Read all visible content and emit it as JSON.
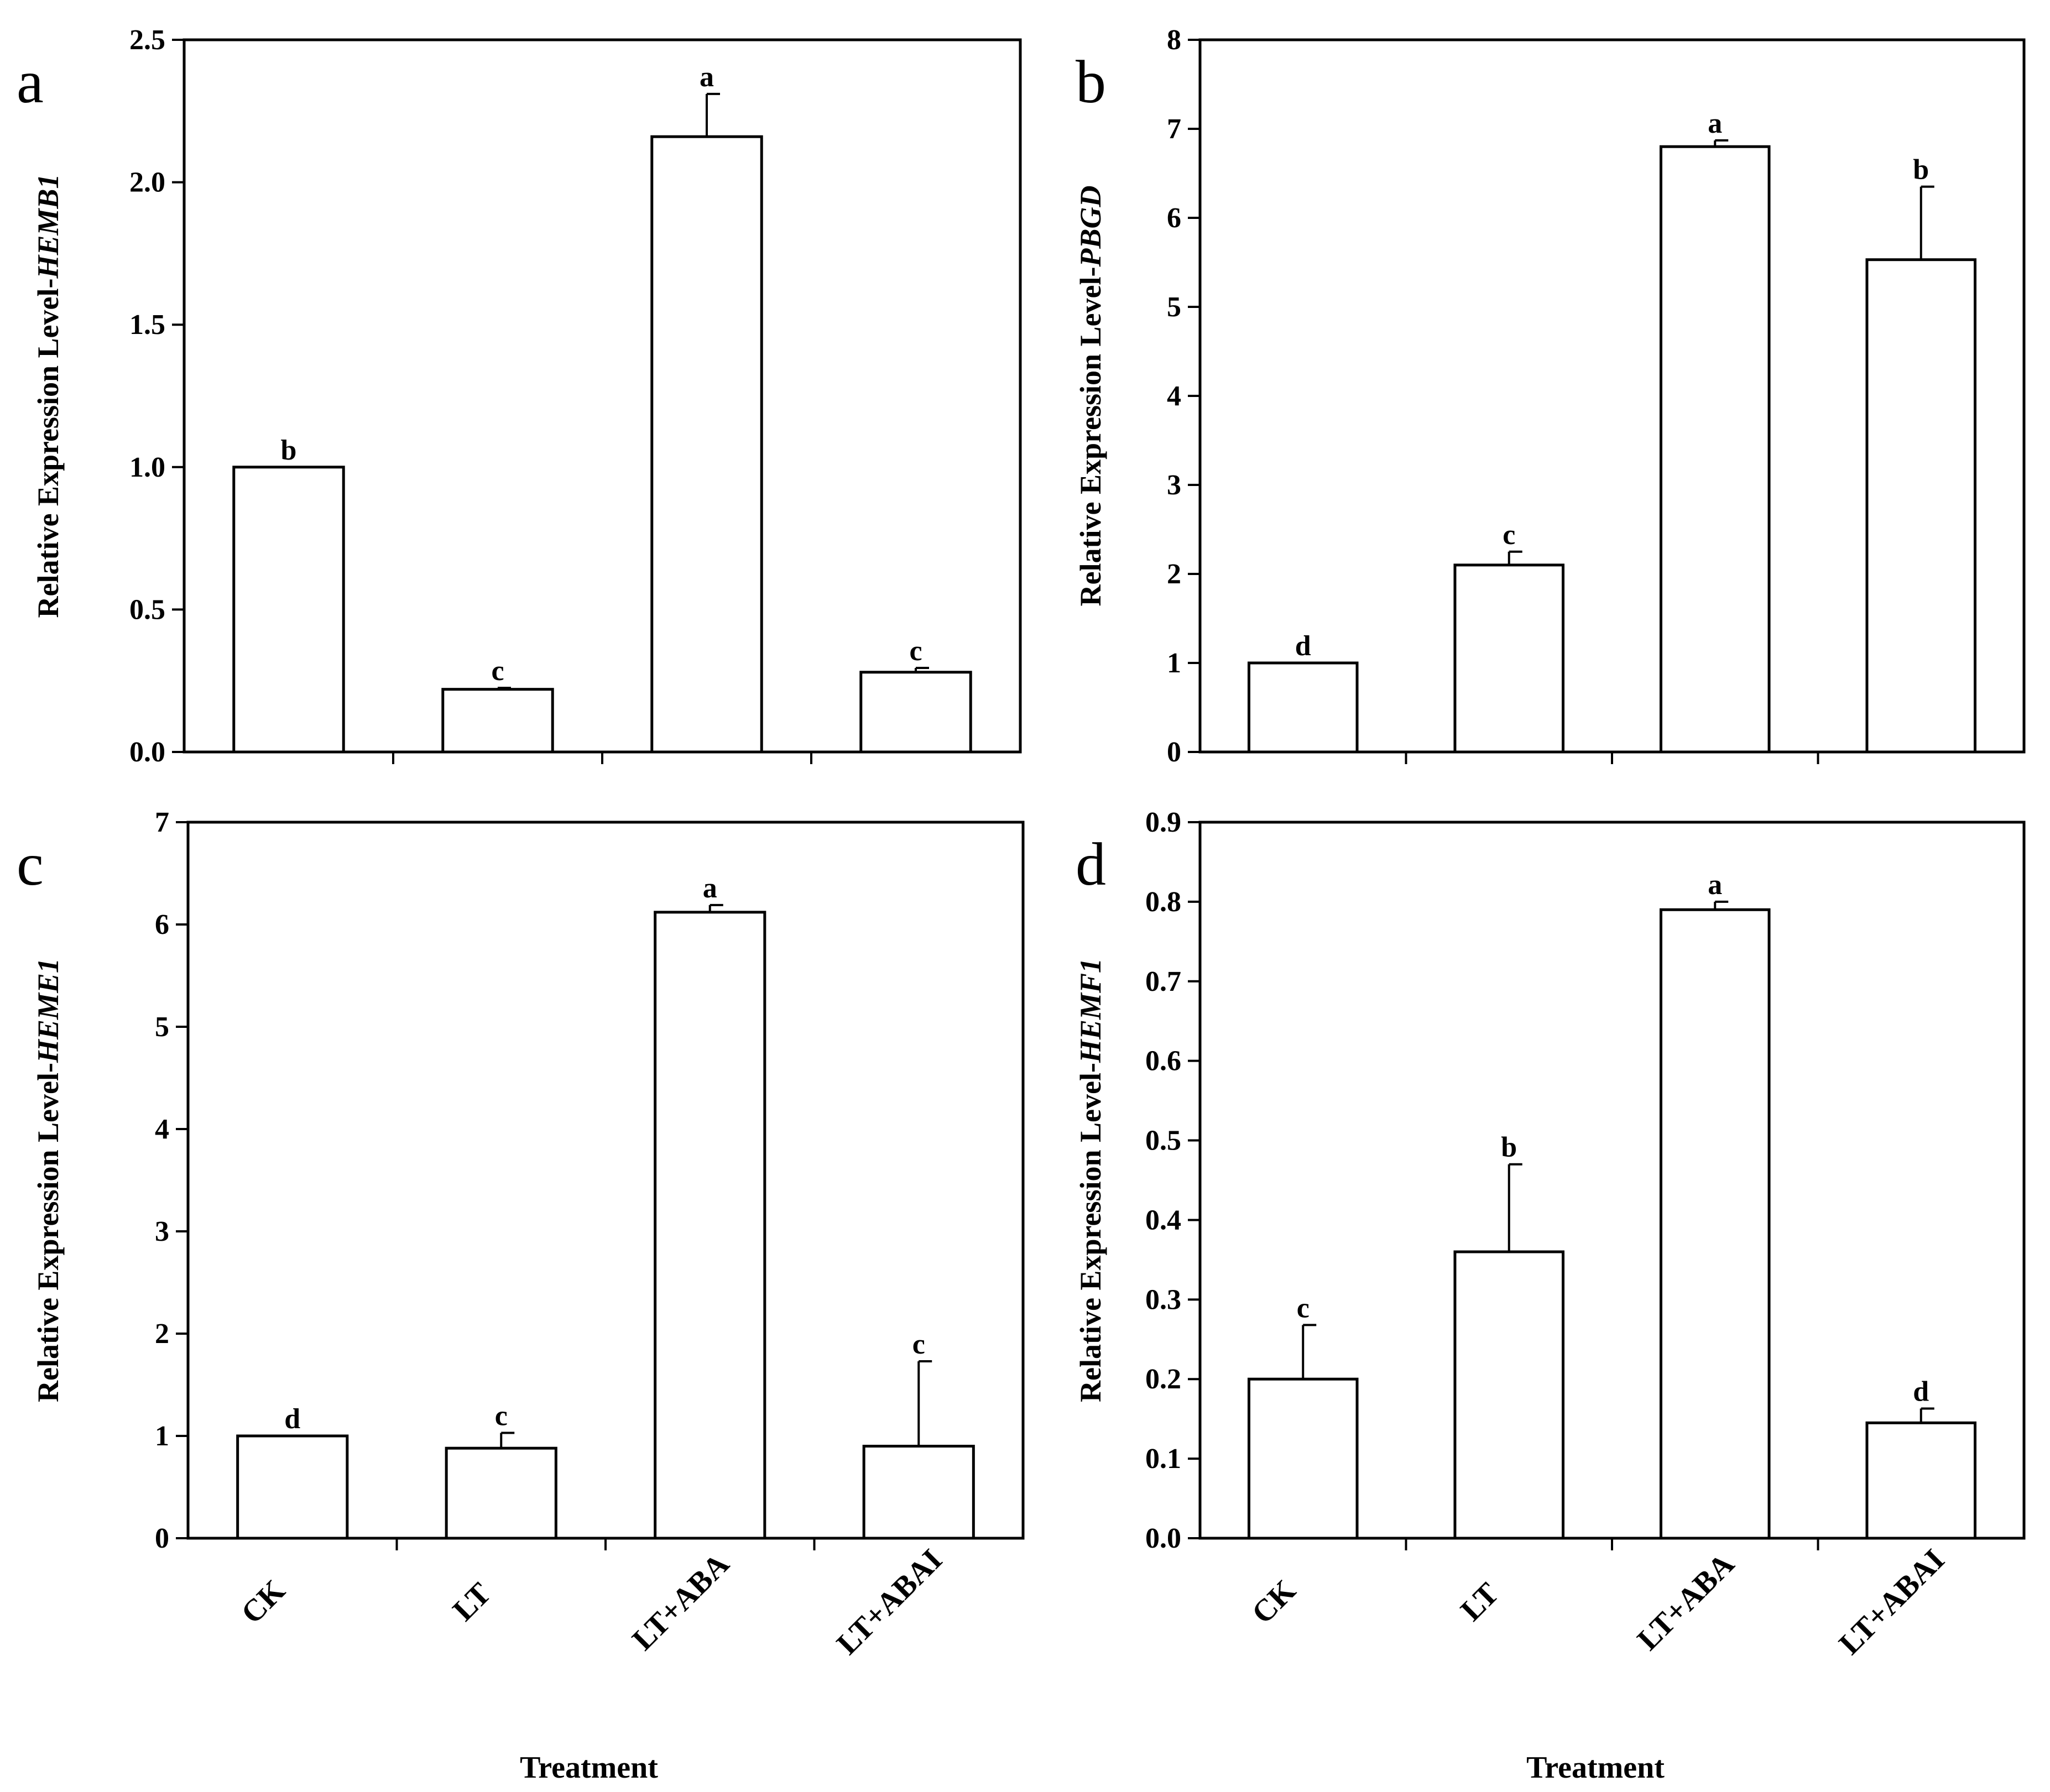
{
  "chart_data": [
    {
      "type": "bar",
      "panel_label": "a",
      "ylabel_prefix": "Relative Expression Level-",
      "ylabel_gene": "HEMB1",
      "xlabel": "",
      "ylim": [
        0,
        2.5
      ],
      "ytick_labels": [
        "0.0",
        "0.5",
        "1.0",
        "1.5",
        "2.0",
        "2.5"
      ],
      "categories": [
        "CK",
        "LT",
        "LT+ABA",
        "LT+ABAI"
      ],
      "show_category_labels": false,
      "values": [
        1.0,
        0.22,
        2.16,
        0.28
      ],
      "errors": [
        0,
        0.005,
        0.15,
        0.015
      ],
      "letters": [
        "b",
        "c",
        "a",
        "c"
      ]
    },
    {
      "type": "bar",
      "panel_label": "b",
      "ylabel_prefix": "Relative Expression Level-",
      "ylabel_gene": "PBGD",
      "xlabel": "",
      "ylim": [
        0,
        8
      ],
      "ytick_labels": [
        "0",
        "1",
        "2",
        "3",
        "4",
        "5",
        "6",
        "7",
        "8"
      ],
      "categories": [
        "CK",
        "LT",
        "LT+ABA",
        "LT+ABAI"
      ],
      "show_category_labels": false,
      "values": [
        1.0,
        2.1,
        6.8,
        5.53
      ],
      "errors": [
        0,
        0.15,
        0.07,
        0.82
      ],
      "letters": [
        "d",
        "c",
        "a",
        "b"
      ]
    },
    {
      "type": "bar",
      "panel_label": "c",
      "ylabel_prefix": "Relative Expression Level-",
      "ylabel_gene": "HEME1",
      "xlabel": "Treatment",
      "ylim": [
        0,
        7
      ],
      "ytick_labels": [
        "0",
        "1",
        "2",
        "3",
        "4",
        "5",
        "6",
        "7"
      ],
      "categories": [
        "CK",
        "LT",
        "LT+ABA",
        "LT+ABAI"
      ],
      "show_category_labels": true,
      "values": [
        1.0,
        0.88,
        6.12,
        0.9
      ],
      "errors": [
        0,
        0.15,
        0.07,
        0.83
      ],
      "letters": [
        "d",
        "c",
        "a",
        "c"
      ]
    },
    {
      "type": "bar",
      "panel_label": "d",
      "ylabel_prefix": "Relative Expression Level-",
      "ylabel_gene": "HEMF1",
      "xlabel": "Treatment",
      "ylim": [
        0,
        0.9
      ],
      "ytick_labels": [
        "0.0",
        "0.1",
        "0.2",
        "0.3",
        "0.4",
        "0.5",
        "0.6",
        "0.7",
        "0.8",
        "0.9"
      ],
      "categories": [
        "CK",
        "LT",
        "LT+ABA",
        "LT+ABAI"
      ],
      "show_category_labels": true,
      "values": [
        0.2,
        0.36,
        0.79,
        0.145
      ],
      "errors": [
        0.068,
        0.11,
        0.01,
        0.018
      ],
      "letters": [
        "c",
        "b",
        "a",
        "d"
      ]
    }
  ]
}
